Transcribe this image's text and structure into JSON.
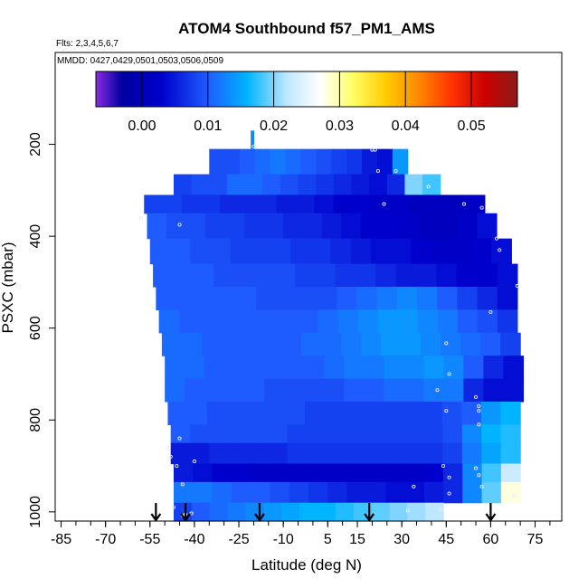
{
  "chart_data": {
    "type": "heatmap",
    "title": "ATOM4 Southbound f57_PM1_AMS",
    "flights_note": "Flts: 2,3,4,5,6,7",
    "dates_note": "MMDD: 0427,0429,0501,0503,0506,0509",
    "xlabel": "Latitude (deg N)",
    "ylabel": "PSXC (mbar)",
    "x_ticks": [
      "-85",
      "-70",
      "-55",
      "-40",
      "-25",
      "-10",
      "5",
      "15",
      "30",
      "45",
      "60",
      "75"
    ],
    "x_tick_values": [
      -85,
      -70,
      -55,
      -40,
      -25,
      -10,
      5,
      15,
      30,
      45,
      60,
      75
    ],
    "y_ticks": [
      "200",
      "400",
      "600",
      "800",
      "1000"
    ],
    "y_tick_values": [
      200,
      400,
      600,
      800,
      1000
    ],
    "xlim": [
      -87,
      84
    ],
    "ylim": [
      1020,
      0
    ],
    "y_reversed": true,
    "grid": false,
    "colorbar": {
      "range": [
        -0.007,
        0.057
      ],
      "ticks": [
        "0.00",
        "0.01",
        "0.02",
        "0.03",
        "0.04",
        "0.05"
      ],
      "tick_values": [
        0.0,
        0.01,
        0.02,
        0.03,
        0.04,
        0.05
      ],
      "stops": [
        {
          "v": -0.007,
          "c": "#8a2be2"
        },
        {
          "v": -0.003,
          "c": "#0000a0"
        },
        {
          "v": 0.003,
          "c": "#0000cd"
        },
        {
          "v": 0.01,
          "c": "#1e5cff"
        },
        {
          "v": 0.016,
          "c": "#00b4ff"
        },
        {
          "v": 0.022,
          "c": "#bfe6ff"
        },
        {
          "v": 0.027,
          "c": "#ffffff"
        },
        {
          "v": 0.032,
          "c": "#ffff66"
        },
        {
          "v": 0.037,
          "c": "#ffcc00"
        },
        {
          "v": 0.042,
          "c": "#ff8800"
        },
        {
          "v": 0.047,
          "c": "#ff3300"
        },
        {
          "v": 0.052,
          "c": "#cc0000"
        },
        {
          "v": 0.057,
          "c": "#8b1a1a"
        }
      ]
    },
    "bands": [
      {
        "p_top": 170,
        "p_bot": 210,
        "x_start": -21,
        "x_end": -20,
        "values": [
          0.013
        ]
      },
      {
        "p_top": 210,
        "p_bot": 265,
        "x_start": -35,
        "x_end": 32,
        "values": [
          0.009,
          0.009,
          0.01,
          0.011,
          0.012,
          0.011,
          0.01,
          0.009,
          0.008,
          0.007,
          0.005,
          0.004,
          0.014
        ]
      },
      {
        "p_top": 265,
        "p_bot": 310,
        "x_start": -47,
        "x_end": 43,
        "values": [
          0.008,
          0.009,
          0.009,
          0.011,
          0.011,
          0.01,
          0.009,
          0.008,
          0.007,
          0.006,
          0.005,
          0.004,
          0.006,
          0.02,
          0.018
        ]
      },
      {
        "p_top": 310,
        "p_bot": 350,
        "x_start": -57,
        "x_end": 58,
        "values": [
          0.008,
          0.008,
          0.007,
          0.007,
          0.006,
          0.006,
          0.006,
          0.005,
          0.005,
          0.004,
          0.003,
          0.003,
          0.002,
          0.002,
          0.001,
          0.001,
          0.001,
          0.002
        ]
      },
      {
        "p_top": 350,
        "p_bot": 405,
        "x_start": -56,
        "x_end": 62,
        "values": [
          0.01,
          0.009,
          0.009,
          0.008,
          0.008,
          0.007,
          0.007,
          0.006,
          0.006,
          0.005,
          0.004,
          0.003,
          0.003,
          0.002,
          0.001,
          0.001,
          0.002,
          0.004
        ]
      },
      {
        "p_top": 405,
        "p_bot": 460,
        "x_start": -55,
        "x_end": 67,
        "values": [
          0.01,
          0.01,
          0.009,
          0.009,
          0.008,
          0.008,
          0.008,
          0.007,
          0.007,
          0.006,
          0.005,
          0.004,
          0.004,
          0.003,
          0.002,
          0.002,
          0.003,
          0.004
        ]
      },
      {
        "p_top": 460,
        "p_bot": 510,
        "x_start": -54,
        "x_end": 69,
        "values": [
          0.01,
          0.01,
          0.01,
          0.009,
          0.009,
          0.009,
          0.009,
          0.008,
          0.008,
          0.007,
          0.007,
          0.006,
          0.005,
          0.005,
          0.004,
          0.003,
          0.003,
          0.004
        ]
      },
      {
        "p_top": 510,
        "p_bot": 560,
        "x_start": -53,
        "x_end": 69,
        "values": [
          0.01,
          0.01,
          0.01,
          0.01,
          0.01,
          0.009,
          0.009,
          0.009,
          0.009,
          0.01,
          0.011,
          0.012,
          0.013,
          0.012,
          0.01,
          0.008,
          0.006,
          0.004
        ]
      },
      {
        "p_top": 560,
        "p_bot": 610,
        "x_start": -52,
        "x_end": 69,
        "values": [
          0.011,
          0.01,
          0.01,
          0.01,
          0.01,
          0.01,
          0.01,
          0.01,
          0.011,
          0.012,
          0.013,
          0.014,
          0.014,
          0.013,
          0.012,
          0.01,
          0.009,
          0.007
        ]
      },
      {
        "p_top": 610,
        "p_bot": 660,
        "x_start": -51,
        "x_end": 70,
        "values": [
          0.011,
          0.011,
          0.01,
          0.01,
          0.01,
          0.01,
          0.01,
          0.011,
          0.011,
          0.012,
          0.013,
          0.014,
          0.014,
          0.013,
          0.012,
          0.011,
          0.01,
          0.008
        ]
      },
      {
        "p_top": 660,
        "p_bot": 710,
        "x_start": -50,
        "x_end": 71,
        "values": [
          0.011,
          0.011,
          0.01,
          0.01,
          0.01,
          0.01,
          0.01,
          0.01,
          0.011,
          0.012,
          0.012,
          0.013,
          0.013,
          0.014,
          0.013,
          0.01,
          0.006,
          0.004
        ]
      },
      {
        "p_top": 710,
        "p_bot": 760,
        "x_start": -50,
        "x_end": 71,
        "values": [
          0.011,
          0.01,
          0.01,
          0.01,
          0.01,
          0.009,
          0.009,
          0.009,
          0.009,
          0.01,
          0.01,
          0.011,
          0.011,
          0.012,
          0.012,
          0.006,
          0.004,
          0.004
        ]
      },
      {
        "p_top": 760,
        "p_bot": 810,
        "x_start": -49,
        "x_end": 70,
        "values": [
          0.01,
          0.01,
          0.009,
          0.009,
          0.009,
          0.009,
          0.009,
          0.008,
          0.008,
          0.008,
          0.008,
          0.008,
          0.008,
          0.008,
          0.009,
          0.01,
          0.014,
          0.016
        ]
      },
      {
        "p_top": 810,
        "p_bot": 850,
        "x_start": -48,
        "x_end": 70,
        "values": [
          0.01,
          0.009,
          0.009,
          0.009,
          0.009,
          0.009,
          0.008,
          0.008,
          0.008,
          0.008,
          0.008,
          0.008,
          0.008,
          0.008,
          0.009,
          0.013,
          0.016,
          0.017
        ]
      },
      {
        "p_top": 850,
        "p_bot": 895,
        "x_start": -48,
        "x_end": 70,
        "values": [
          0.005,
          0.005,
          0.006,
          0.006,
          0.006,
          0.006,
          0.007,
          0.007,
          0.007,
          0.007,
          0.007,
          0.007,
          0.007,
          0.007,
          0.008,
          0.012,
          0.015,
          0.017
        ]
      },
      {
        "p_top": 895,
        "p_bot": 935,
        "x_start": -47,
        "x_end": 70,
        "values": [
          0.005,
          0.004,
          0.003,
          0.003,
          0.002,
          0.002,
          0.002,
          0.002,
          0.002,
          0.002,
          0.002,
          0.002,
          0.002,
          0.003,
          0.006,
          0.013,
          0.018,
          0.023
        ]
      },
      {
        "p_top": 935,
        "p_bot": 980,
        "x_start": -47,
        "x_end": 70,
        "values": [
          0.012,
          0.012,
          0.011,
          0.01,
          0.01,
          0.009,
          0.008,
          0.007,
          0.006,
          0.005,
          0.005,
          0.004,
          0.004,
          0.005,
          0.006,
          0.013,
          0.019,
          0.028
        ]
      },
      {
        "p_top": 980,
        "p_bot": 1020,
        "x_start": -47,
        "x_end": 44,
        "values": [
          0.008,
          0.01,
          0.011,
          0.012,
          0.013,
          0.014,
          0.015,
          0.016,
          0.016,
          0.017,
          0.018,
          0.019,
          0.02,
          0.021,
          0.022
        ]
      }
    ],
    "profile_markers": [
      {
        "lat": -53
      },
      {
        "lat": -43
      },
      {
        "lat": -18
      },
      {
        "lat": 19
      },
      {
        "lat": 60
      }
    ],
    "sample_points": [
      {
        "lat": -20,
        "p": 205
      },
      {
        "lat": 20,
        "p": 212
      },
      {
        "lat": 21,
        "p": 212
      },
      {
        "lat": 22,
        "p": 258
      },
      {
        "lat": 28,
        "p": 258
      },
      {
        "lat": 39,
        "p": 292
      },
      {
        "lat": 24,
        "p": 330
      },
      {
        "lat": 51,
        "p": 330
      },
      {
        "lat": 57,
        "p": 338
      },
      {
        "lat": 59,
        "p": 345
      },
      {
        "lat": -58,
        "p": 360
      },
      {
        "lat": -45,
        "p": 375
      },
      {
        "lat": 62,
        "p": 405
      },
      {
        "lat": 63,
        "p": 430
      },
      {
        "lat": 69,
        "p": 508
      },
      {
        "lat": 60,
        "p": 565
      },
      {
        "lat": 45,
        "p": 633
      },
      {
        "lat": 46,
        "p": 700
      },
      {
        "lat": 42,
        "p": 735
      },
      {
        "lat": 55,
        "p": 750
      },
      {
        "lat": 56,
        "p": 770
      },
      {
        "lat": 56,
        "p": 780
      },
      {
        "lat": 45,
        "p": 780
      },
      {
        "lat": 56,
        "p": 810
      },
      {
        "lat": -45,
        "p": 840
      },
      {
        "lat": -49,
        "p": 860
      },
      {
        "lat": -48,
        "p": 880
      },
      {
        "lat": -40,
        "p": 890
      },
      {
        "lat": -46,
        "p": 900
      },
      {
        "lat": 44,
        "p": 900
      },
      {
        "lat": 55,
        "p": 905
      },
      {
        "lat": 56,
        "p": 920
      },
      {
        "lat": 46,
        "p": 925
      },
      {
        "lat": -44,
        "p": 940
      },
      {
        "lat": 34,
        "p": 945
      },
      {
        "lat": 57,
        "p": 945
      },
      {
        "lat": 46,
        "p": 960
      },
      {
        "lat": 68,
        "p": 965
      },
      {
        "lat": -47,
        "p": 990
      },
      {
        "lat": 43,
        "p": 995
      },
      {
        "lat": 32,
        "p": 997
      },
      {
        "lat": -41,
        "p": 1003
      },
      {
        "lat": -43,
        "p": 1005
      },
      {
        "lat": -44,
        "p": 1008
      }
    ]
  }
}
